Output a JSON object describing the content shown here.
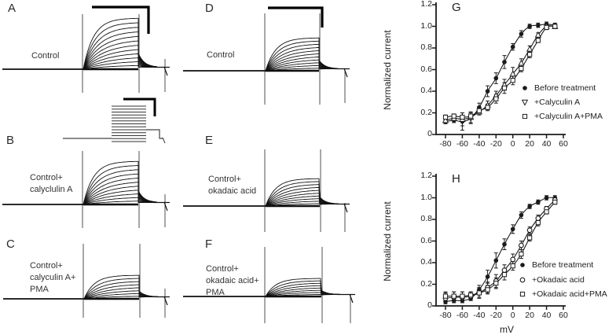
{
  "colors": {
    "ink": "#1b1b1b",
    "trace": "#121212",
    "cursor_line": "#4f4f4f",
    "background": "#ffffff"
  },
  "trace_panels": [
    {
      "letter": "A",
      "caption_lines": [
        "Control"
      ],
      "trace_count": 12,
      "relative_amplitude": 1.0,
      "has_scale_bar": true,
      "has_voltage_protocol_inset": true
    },
    {
      "letter": "B",
      "caption_lines": [
        "Control+",
        "calyclulin A"
      ],
      "trace_count": 11,
      "relative_amplitude": 0.85,
      "has_scale_bar": false,
      "has_voltage_protocol_inset": false
    },
    {
      "letter": "C",
      "caption_lines": [
        "Control+",
        "calyculin A+",
        "PMA"
      ],
      "trace_count": 8,
      "relative_amplitude": 0.46,
      "has_scale_bar": false,
      "has_voltage_protocol_inset": false
    },
    {
      "letter": "D",
      "caption_lines": [
        "Control"
      ],
      "trace_count": 11,
      "relative_amplitude": 0.65,
      "has_scale_bar": true,
      "has_voltage_protocol_inset": false
    },
    {
      "letter": "E",
      "caption_lines": [
        "Control+",
        "okadaic acid"
      ],
      "trace_count": 10,
      "relative_amplitude": 0.54,
      "has_scale_bar": false,
      "has_voltage_protocol_inset": false
    },
    {
      "letter": "F",
      "caption_lines": [
        "Control+",
        "okadaic acid+",
        "PMA"
      ],
      "trace_count": 8,
      "relative_amplitude": 0.35,
      "has_scale_bar": false,
      "has_voltage_protocol_inset": false
    }
  ],
  "chart_data": [
    {
      "id": "G",
      "type": "line",
      "title": "G",
      "xlabel": "",
      "ylabel": "Normalized current",
      "xlim": [
        -91,
        62
      ],
      "ylim": [
        0,
        1.2
      ],
      "grid": false,
      "legend_position": "inside-right",
      "x_ticks": [
        -80,
        -60,
        -40,
        -20,
        0,
        20,
        40,
        60
      ],
      "x_tick_labels": [
        "-80",
        "-60",
        "-40",
        "-20",
        "0",
        "20",
        "40",
        "60"
      ],
      "y_ticks": [
        0,
        0.2,
        0.4,
        0.6,
        0.8,
        1.0,
        1.2
      ],
      "y_tick_labels": [
        "0",
        "0.2",
        "0.4",
        "0.6",
        "0.8",
        "1.0",
        "1.2"
      ],
      "x": [
        -80,
        -70,
        -60,
        -50,
        -40,
        -30,
        -20,
        -10,
        0,
        10,
        20,
        30,
        40,
        50
      ],
      "series": [
        {
          "name": "Before treatment",
          "marker": "filled-circle",
          "values": [
            0.12,
            0.13,
            0.12,
            0.15,
            0.25,
            0.4,
            0.52,
            0.67,
            0.81,
            0.93,
            1.0,
            1.01,
            1.02,
            1.01
          ],
          "err": [
            0.02,
            0.02,
            0.08,
            0.05,
            0.04,
            0.05,
            0.05,
            0.06,
            0.03,
            0.03,
            0.02,
            0.02,
            0.02,
            0.02
          ]
        },
        {
          "name": "+Calyculin A",
          "marker": "open-triangle",
          "values": [
            0.13,
            0.15,
            0.14,
            0.16,
            0.21,
            0.27,
            0.36,
            0.46,
            0.56,
            0.66,
            0.79,
            0.92,
            1.0,
            1.0
          ],
          "err": [
            0.03,
            0.02,
            0.06,
            0.05,
            0.03,
            0.04,
            0.04,
            0.05,
            0.06,
            0.04,
            0.03,
            0.02,
            0.02,
            0.02
          ]
        },
        {
          "name": "+Calyculin A+PMA",
          "marker": "open-square",
          "values": [
            0.16,
            0.17,
            0.16,
            0.17,
            0.22,
            0.25,
            0.33,
            0.43,
            0.5,
            0.61,
            0.74,
            0.87,
            0.99,
            1.0
          ],
          "err": [
            0.02,
            0.02,
            0.04,
            0.03,
            0.03,
            0.03,
            0.04,
            0.05,
            0.04,
            0.03,
            0.03,
            0.02,
            0.02,
            0.02
          ]
        }
      ]
    },
    {
      "id": "H",
      "type": "line",
      "title": "H",
      "xlabel": "mV",
      "ylabel": "Normalized current",
      "xlim": [
        -91,
        62
      ],
      "ylim": [
        0,
        1.2
      ],
      "grid": false,
      "legend_position": "inside-right",
      "x_ticks": [
        -80,
        -60,
        -40,
        -20,
        0,
        20,
        40,
        60
      ],
      "x_tick_labels": [
        "-80",
        "-60",
        "-40",
        "-20",
        "0",
        "20",
        "40",
        "60"
      ],
      "y_ticks": [
        0,
        0.2,
        0.4,
        0.6,
        0.8,
        1.0,
        1.2
      ],
      "y_tick_labels": [
        "0",
        "0.2",
        "0.4",
        "0.6",
        "0.8",
        "1.0",
        "1.2"
      ],
      "x": [
        -80,
        -70,
        -60,
        -50,
        -40,
        -30,
        -20,
        -10,
        0,
        10,
        20,
        30,
        40,
        50
      ],
      "series": [
        {
          "name": "Before treatment",
          "marker": "filled-circle",
          "values": [
            0.04,
            0.05,
            0.05,
            0.07,
            0.15,
            0.27,
            0.42,
            0.57,
            0.71,
            0.84,
            0.92,
            0.96,
            1.0,
            1.0
          ],
          "err": [
            0.02,
            0.02,
            0.02,
            0.02,
            0.04,
            0.06,
            0.07,
            0.05,
            0.04,
            0.03,
            0.02,
            0.02,
            0.02,
            0.02
          ]
        },
        {
          "name": "+Okadaic acid",
          "marker": "open-circle",
          "values": [
            0.07,
            0.08,
            0.08,
            0.09,
            0.12,
            0.17,
            0.23,
            0.33,
            0.43,
            0.56,
            0.7,
            0.81,
            0.9,
            0.98
          ],
          "err": [
            0.05,
            0.05,
            0.05,
            0.04,
            0.05,
            0.05,
            0.06,
            0.05,
            0.05,
            0.04,
            0.03,
            0.03,
            0.02,
            0.02
          ]
        },
        {
          "name": "+Okadaic acid+PMA",
          "marker": "open-square",
          "values": [
            0.09,
            0.09,
            0.09,
            0.1,
            0.12,
            0.15,
            0.21,
            0.29,
            0.37,
            0.48,
            0.63,
            0.77,
            0.87,
            0.96
          ],
          "err": [
            0.04,
            0.04,
            0.04,
            0.03,
            0.04,
            0.04,
            0.05,
            0.05,
            0.04,
            0.04,
            0.03,
            0.03,
            0.02,
            0.02
          ]
        }
      ]
    }
  ]
}
